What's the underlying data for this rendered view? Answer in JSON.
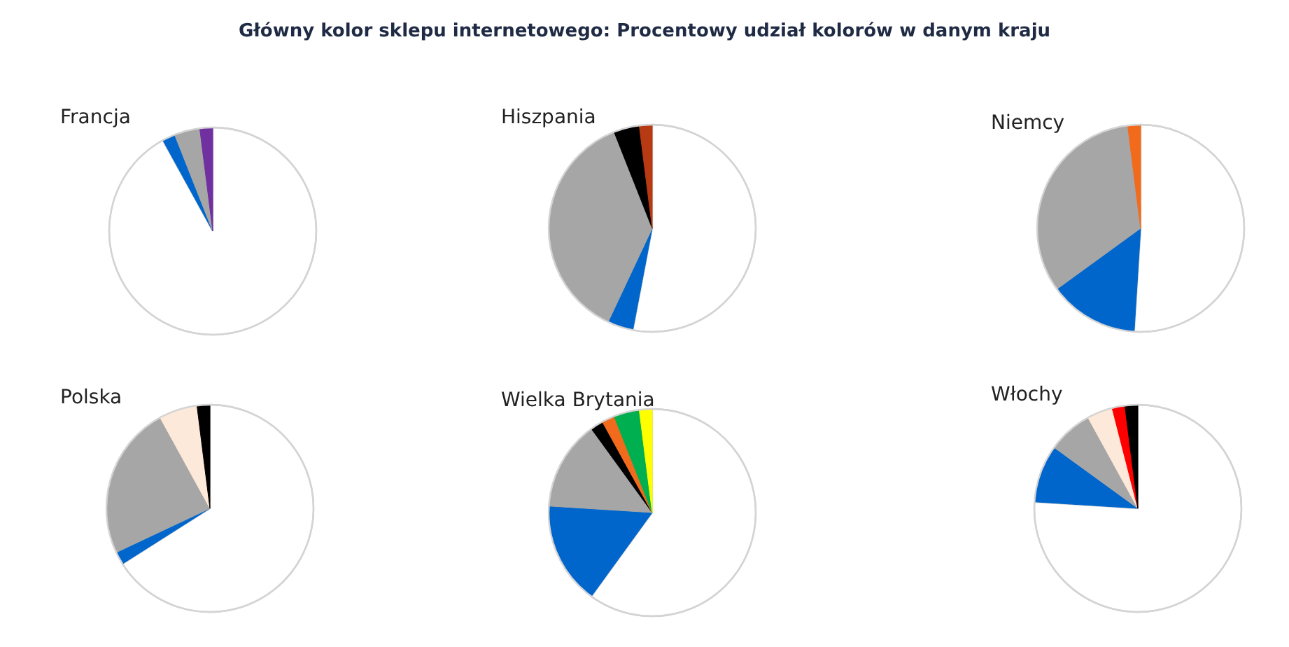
{
  "chart_data": [
    {
      "type": "pie",
      "title": "Francja",
      "annotations": [
        "Główny kolor sklepu internetowego: Procentowy udział kolorów w danym kraju"
      ],
      "categories": [
        null,
        null,
        null,
        null
      ],
      "values": [
        92,
        2,
        4,
        2
      ],
      "colors": [
        "#ffffff",
        "#0066cc",
        "#a6a6a6",
        "#7030a0"
      ]
    },
    {
      "type": "pie",
      "title": "Hiszpania",
      "categories": [
        null,
        null,
        null,
        null,
        null
      ],
      "values": [
        53,
        4,
        37,
        4,
        2
      ],
      "colors": [
        "#ffffff",
        "#0066cc",
        "#a6a6a6",
        "#000000",
        "#b83a12"
      ]
    },
    {
      "type": "pie",
      "title": "Niemcy",
      "categories": [
        null,
        null,
        null,
        null
      ],
      "values": [
        51,
        14,
        33,
        2
      ],
      "colors": [
        "#ffffff",
        "#0066cc",
        "#a6a6a6",
        "#f26a1b"
      ]
    },
    {
      "type": "pie",
      "title": "Polska",
      "categories": [
        null,
        null,
        null,
        null,
        null
      ],
      "values": [
        66,
        2,
        24,
        6,
        2
      ],
      "colors": [
        "#ffffff",
        "#0066cc",
        "#a6a6a6",
        "#fde9d9",
        "#000000"
      ]
    },
    {
      "type": "pie",
      "title": "Wielka Brytania",
      "categories": [
        null,
        null,
        null,
        null,
        null,
        null,
        null
      ],
      "values": [
        60,
        16,
        14,
        2,
        2,
        4,
        2
      ],
      "colors": [
        "#ffffff",
        "#0066cc",
        "#a6a6a6",
        "#000000",
        "#f26a1b",
        "#00b050",
        "#ffff00"
      ]
    },
    {
      "type": "pie",
      "title": "Włochy",
      "categories": [
        null,
        null,
        null,
        null,
        null,
        null
      ],
      "values": [
        76,
        9,
        7,
        4,
        2,
        2
      ],
      "colors": [
        "#ffffff",
        "#0066cc",
        "#a6a6a6",
        "#fde9d9",
        "#ff0000",
        "#000000"
      ]
    }
  ]
}
